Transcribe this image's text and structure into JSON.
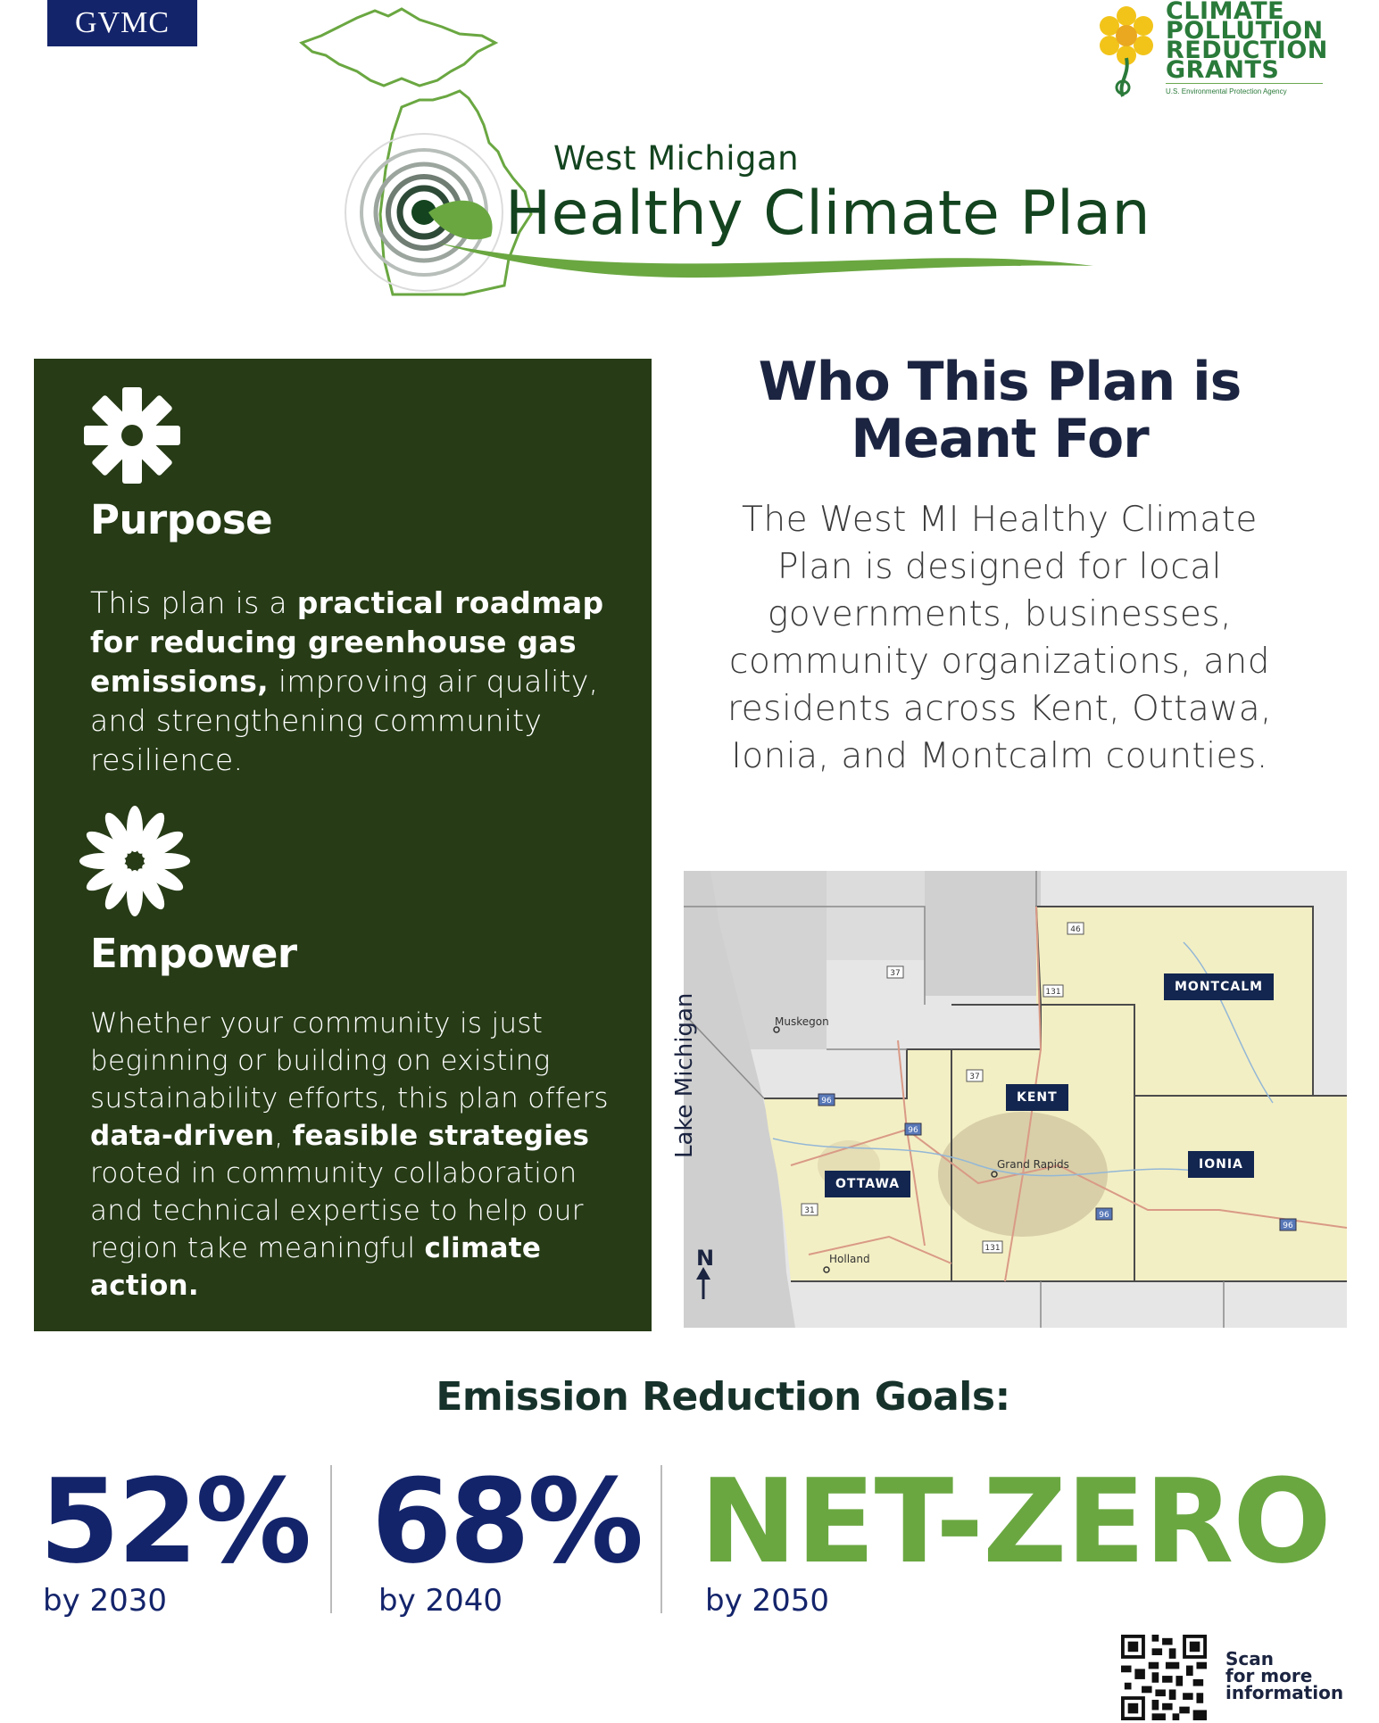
{
  "header": {
    "org_badge": "GVMC",
    "title_small": "West Michigan",
    "title_big": "Healthy Climate Plan",
    "cprg_line1": "CLIMATE",
    "cprg_line2": "POLLUTION",
    "cprg_line3": "REDUCTION",
    "cprg_line4": "GRANTS",
    "cprg_sub": "U.S. Environmental Protection Agency"
  },
  "purpose": {
    "heading": "Purpose",
    "text_1": "This plan is a ",
    "text_bold": "practical roadmap for reducing greenhouse gas emissions,",
    "text_2": " improving air quality, and strengthening community resilience."
  },
  "empower": {
    "heading": "Empower",
    "text_1": "Whether your community is just beginning or building on existing sustainability efforts, this plan offers ",
    "bold_1": "data-driven",
    "text_2": ", ",
    "bold_2": "feasible strategies",
    "text_3": " rooted in community collaboration and technical expertise to help our region take meaningful ",
    "bold_3": "climate action."
  },
  "who": {
    "title": "Who This Plan is Meant For",
    "text": "The West MI Healthy Climate Plan is designed for local governments, businesses, community organizations, and residents across Kent, Ottawa, Ionia, and Montcalm counties."
  },
  "map": {
    "lake": "Lake Michigan",
    "north": "N",
    "counties": [
      "MONTCALM",
      "KENT",
      "OTTAWA",
      "IONIA"
    ],
    "cities": [
      "Muskegon",
      "Grand Rapids",
      "Holland"
    ],
    "routes": [
      "37",
      "46",
      "131",
      "37",
      "96",
      "96",
      "31",
      "131",
      "96",
      "96"
    ]
  },
  "goals": {
    "title": "Emission Reduction Goals:",
    "items": [
      {
        "value": "52%",
        "year": "by 2030"
      },
      {
        "value": "68%",
        "year": "by 2040"
      },
      {
        "value": "NET-ZERO",
        "year": "by 2050"
      }
    ]
  },
  "qr": {
    "caption_1": "Scan",
    "caption_2": "for more",
    "caption_3": "information"
  },
  "colors": {
    "navy": "#14246b",
    "panel_green": "#263b16",
    "accent_green": "#6aa741"
  }
}
